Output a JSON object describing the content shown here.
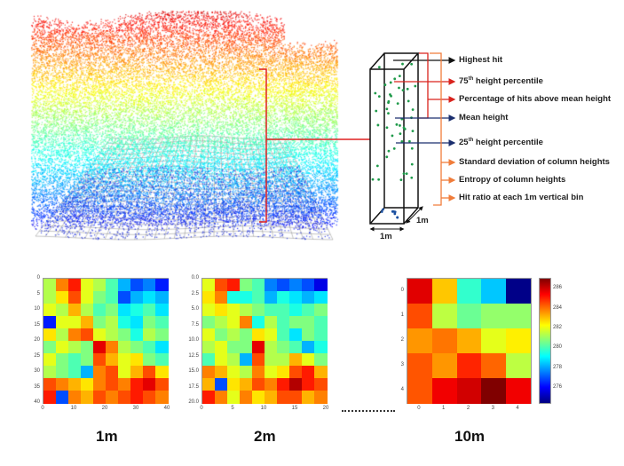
{
  "column_diagram": {
    "labels": [
      {
        "text": "Highest hit",
        "sup": "",
        "color": "#111111"
      },
      {
        "text": "75",
        "sup": "th",
        "rest": " height percentile",
        "color": "#d9231c"
      },
      {
        "text": "Percentage of hits above mean height",
        "sup": "",
        "color": "#d9231c"
      },
      {
        "text": "Mean height",
        "sup": "",
        "color": "#1a2e6e"
      },
      {
        "text": "25",
        "sup": "th",
        "rest": " height percentile",
        "color": "#1a2e6e"
      },
      {
        "text": "Standard deviation of column heights",
        "sup": "",
        "color": "#f07c3a"
      },
      {
        "text": "Entropy of column heights",
        "sup": "",
        "color": "#f07c3a"
      },
      {
        "text": "Hit ratio at each 1m vertical bin",
        "sup": "",
        "color": "#f07c3a"
      }
    ],
    "width_label": "1m",
    "depth_label": "1m"
  },
  "chart_data": [
    {
      "type": "heatmap",
      "resolution_label": "1m",
      "colormap": "jet",
      "x_ticks": [
        "0",
        "10",
        "20",
        "30",
        "40"
      ],
      "y_ticks": [
        "0",
        "5",
        "10",
        "15",
        "20",
        "25",
        "30",
        "35",
        "40"
      ],
      "values_normalized": [
        [
          0.55,
          0.75,
          0.85,
          0.6,
          0.55,
          0.45,
          0.3,
          0.2,
          0.25,
          0.15
        ],
        [
          0.55,
          0.65,
          0.8,
          0.6,
          0.5,
          0.45,
          0.2,
          0.3,
          0.35,
          0.3
        ],
        [
          0.6,
          0.55,
          0.7,
          0.55,
          0.45,
          0.5,
          0.35,
          0.4,
          0.45,
          0.35
        ],
        [
          0.15,
          0.6,
          0.6,
          0.7,
          0.5,
          0.55,
          0.4,
          0.35,
          0.5,
          0.45
        ],
        [
          0.65,
          0.55,
          0.75,
          0.8,
          0.6,
          0.55,
          0.5,
          0.4,
          0.55,
          0.5
        ],
        [
          0.5,
          0.6,
          0.55,
          0.5,
          0.9,
          0.75,
          0.55,
          0.5,
          0.45,
          0.35
        ],
        [
          0.6,
          0.5,
          0.45,
          0.5,
          0.8,
          0.7,
          0.6,
          0.65,
          0.5,
          0.45
        ],
        [
          0.55,
          0.5,
          0.45,
          0.3,
          0.75,
          0.8,
          0.6,
          0.7,
          0.8,
          0.65
        ],
        [
          0.8,
          0.75,
          0.7,
          0.65,
          0.75,
          0.8,
          0.75,
          0.85,
          0.9,
          0.8
        ],
        [
          0.85,
          0.2,
          0.75,
          0.7,
          0.8,
          0.75,
          0.8,
          0.85,
          0.8,
          0.75
        ]
      ]
    },
    {
      "type": "heatmap",
      "resolution_label": "2m",
      "colormap": "jet",
      "x_ticks": [
        "0",
        "5",
        "10",
        "15",
        "20"
      ],
      "y_ticks": [
        "0.0",
        "2.5",
        "5.0",
        "7.5",
        "10.0",
        "12.5",
        "15.0",
        "17.5",
        "20.0"
      ],
      "values_normalized": [
        [
          0.6,
          0.8,
          0.85,
          0.5,
          0.45,
          0.25,
          0.2,
          0.25,
          0.2,
          0.1
        ],
        [
          0.65,
          0.75,
          0.4,
          0.4,
          0.45,
          0.3,
          0.4,
          0.35,
          0.3,
          0.35
        ],
        [
          0.6,
          0.65,
          0.6,
          0.55,
          0.5,
          0.45,
          0.45,
          0.4,
          0.45,
          0.5
        ],
        [
          0.5,
          0.55,
          0.6,
          0.75,
          0.4,
          0.55,
          0.45,
          0.5,
          0.5,
          0.45
        ],
        [
          0.6,
          0.5,
          0.55,
          0.5,
          0.65,
          0.6,
          0.45,
          0.35,
          0.5,
          0.45
        ],
        [
          0.55,
          0.6,
          0.5,
          0.5,
          0.9,
          0.55,
          0.5,
          0.45,
          0.3,
          0.4
        ],
        [
          0.45,
          0.6,
          0.55,
          0.3,
          0.8,
          0.55,
          0.55,
          0.7,
          0.6,
          0.5
        ],
        [
          0.75,
          0.7,
          0.6,
          0.55,
          0.75,
          0.6,
          0.65,
          0.8,
          0.85,
          0.7
        ],
        [
          0.7,
          0.2,
          0.65,
          0.7,
          0.8,
          0.75,
          0.85,
          0.95,
          0.85,
          0.8
        ],
        [
          0.85,
          0.75,
          0.6,
          0.75,
          0.65,
          0.7,
          0.8,
          0.8,
          0.7,
          0.75
        ]
      ]
    },
    {
      "type": "heatmap",
      "resolution_label": "10m",
      "colormap": "jet",
      "x_ticks": [
        "0",
        "1",
        "2",
        "3",
        "4"
      ],
      "y_ticks": [
        "0",
        "1",
        "2",
        "3",
        "4"
      ],
      "colorbar": {
        "range": [
          274.5,
          287
        ],
        "ticks": [
          "276",
          "278",
          "280",
          "282",
          "284",
          "286"
        ]
      },
      "values": [
        [
          285.8,
          283.0,
          279.8,
          278.5,
          274.6
        ],
        [
          284.5,
          281.5,
          280.5,
          281.0,
          281.0
        ],
        [
          283.6,
          284.0,
          283.3,
          282.0,
          282.5
        ],
        [
          284.4,
          283.6,
          285.0,
          284.2,
          281.5
        ],
        [
          284.4,
          285.6,
          286.0,
          287.0,
          285.6
        ]
      ]
    }
  ]
}
